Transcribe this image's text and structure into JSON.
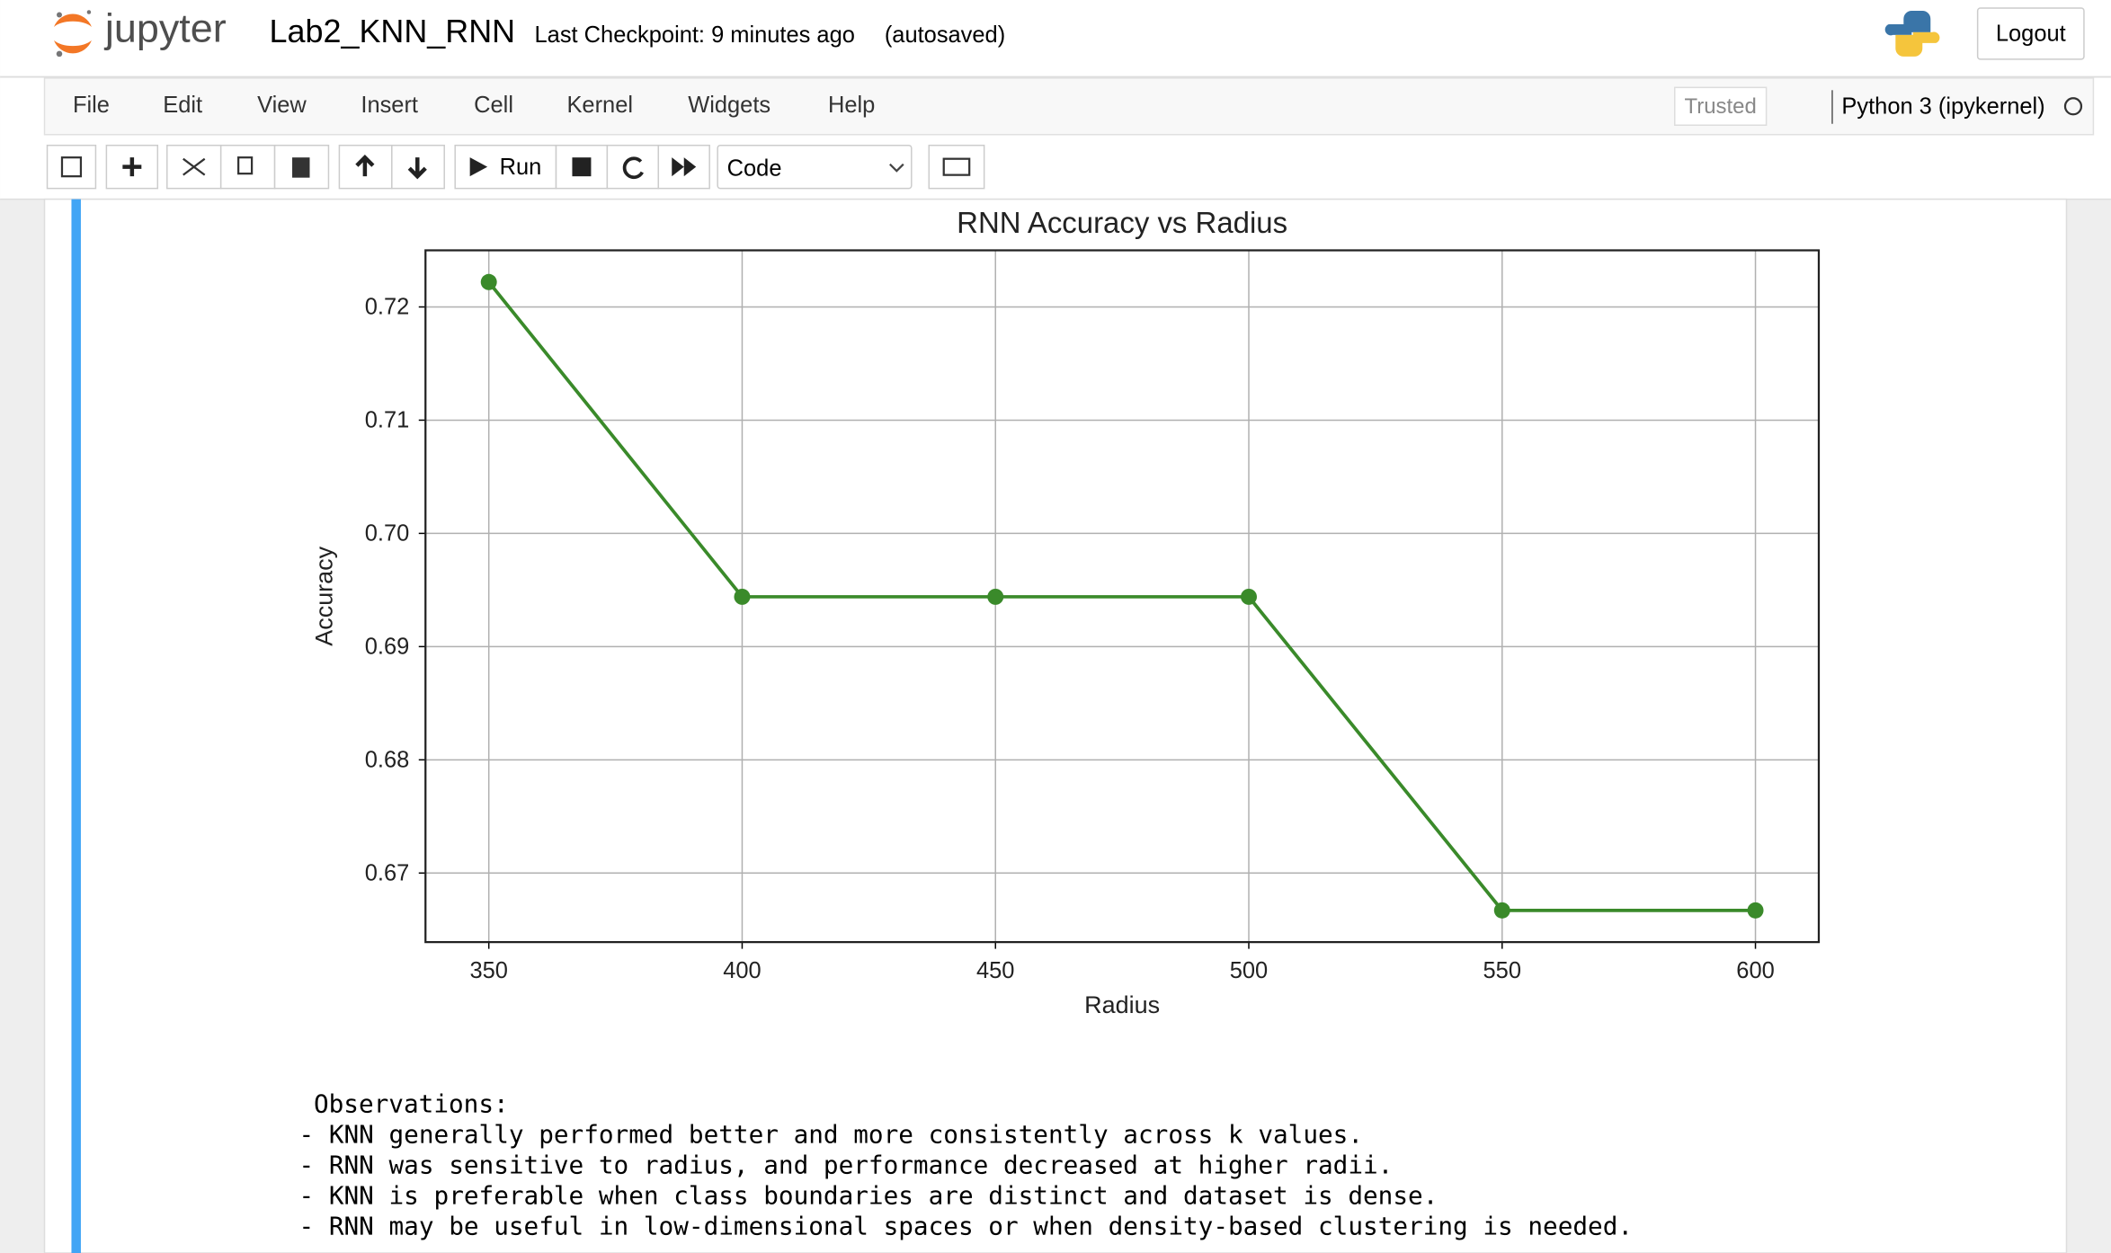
{
  "header": {
    "logo": "jupyter",
    "notebook_name": "Lab2_KNN_RNN",
    "checkpoint": "Last Checkpoint: 9 minutes ago",
    "autosave": "(autosaved)",
    "logout": "Logout"
  },
  "menu": {
    "items": [
      "File",
      "Edit",
      "View",
      "Insert",
      "Cell",
      "Kernel",
      "Widgets",
      "Help"
    ],
    "trusted": "Trusted",
    "kernel": "Python 3 (ipykernel)"
  },
  "toolbar": {
    "run": "Run",
    "cell_type": "Code"
  },
  "chart_data": {
    "type": "line",
    "title": "RNN Accuracy vs Radius",
    "x_label": "Radius",
    "y_label": "Accuracy",
    "x": [
      350,
      400,
      450,
      500,
      550,
      600
    ],
    "series": [
      {
        "name": "RNN",
        "color": "#3a8a2a",
        "values": [
          0.7222,
          0.6944,
          0.6944,
          0.6944,
          0.6667,
          0.6667
        ]
      }
    ],
    "xlim": [
      337.5,
      612.5
    ],
    "ylim": [
      0.6639,
      0.725
    ],
    "xticks": [
      350,
      400,
      450,
      500,
      550,
      600
    ],
    "yticks": [
      0.67,
      0.68,
      0.69,
      {
        "value": 0.7,
        "label": "0.70"
      },
      0.71,
      0.72
    ],
    "grid": true,
    "marker": "circle"
  },
  "output": {
    "lines": [
      "Observations:",
      "- KNN generally performed better and more consistently across k values.",
      "- RNN was sensitive to radius, and performance decreased at higher radii.",
      "- KNN is preferable when class boundaries are distinct and dataset is dense.",
      "- RNN may be useful in low-dimensional spaces or when density-based clustering is needed."
    ]
  }
}
